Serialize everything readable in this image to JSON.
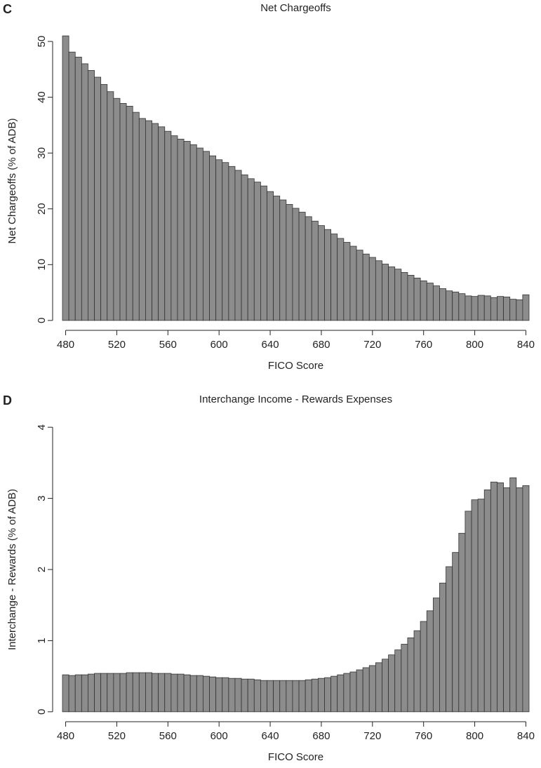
{
  "chart_data": [
    {
      "type": "bar",
      "panel_label": "C",
      "title": "Net Chargeoffs",
      "x_label": "FICO Score",
      "y_label": "Net Chargeoffs (% of ADB)",
      "x": [
        480,
        485,
        490,
        495,
        500,
        505,
        510,
        515,
        520,
        525,
        530,
        535,
        540,
        545,
        550,
        555,
        560,
        565,
        570,
        575,
        580,
        585,
        590,
        595,
        600,
        605,
        610,
        615,
        620,
        625,
        630,
        635,
        640,
        645,
        650,
        655,
        660,
        665,
        670,
        675,
        680,
        685,
        690,
        695,
        700,
        705,
        710,
        715,
        720,
        725,
        730,
        735,
        740,
        745,
        750,
        755,
        760,
        765,
        770,
        775,
        780,
        785,
        790,
        795,
        800,
        805,
        810,
        815,
        820,
        825,
        830,
        835,
        840
      ],
      "values": [
        51.0,
        48.1,
        47.2,
        46.0,
        44.8,
        43.6,
        42.3,
        41.0,
        39.8,
        38.9,
        38.4,
        37.3,
        36.2,
        35.8,
        35.3,
        34.7,
        33.9,
        33.1,
        32.5,
        32.1,
        31.5,
        30.9,
        30.3,
        29.5,
        28.8,
        28.3,
        27.6,
        26.9,
        26.1,
        25.4,
        24.8,
        24.1,
        23.1,
        22.3,
        21.6,
        20.8,
        20.1,
        19.4,
        18.6,
        17.8,
        17.0,
        16.3,
        15.5,
        14.7,
        14.0,
        13.3,
        12.6,
        11.9,
        11.3,
        10.7,
        10.1,
        9.6,
        9.2,
        8.6,
        8.1,
        7.6,
        7.1,
        6.7,
        6.2,
        5.7,
        5.3,
        5.1,
        4.8,
        4.4,
        4.3,
        4.5,
        4.4,
        4.1,
        4.3,
        4.2,
        3.8,
        3.7,
        4.6
      ],
      "bar_width": 5,
      "color": "#8c8c8c",
      "edge_color": "#333333",
      "xlim": [
        477.5,
        842.5
      ],
      "xticks": [
        480,
        520,
        560,
        600,
        640,
        680,
        720,
        760,
        800,
        840
      ],
      "ylim": [
        -1.4,
        52.4
      ],
      "yticks": [
        0,
        10,
        20,
        30,
        40,
        50
      ]
    },
    {
      "type": "bar",
      "panel_label": "D",
      "title": "Interchange Income - Rewards Expenses",
      "x_label": "FICO Score",
      "y_label": "Interchange - Rewards (% of ADB)",
      "x": [
        480,
        485,
        490,
        495,
        500,
        505,
        510,
        515,
        520,
        525,
        530,
        535,
        540,
        545,
        550,
        555,
        560,
        565,
        570,
        575,
        580,
        585,
        590,
        595,
        600,
        605,
        610,
        615,
        620,
        625,
        630,
        635,
        640,
        645,
        650,
        655,
        660,
        665,
        670,
        675,
        680,
        685,
        690,
        695,
        700,
        705,
        710,
        715,
        720,
        725,
        730,
        735,
        740,
        745,
        750,
        755,
        760,
        765,
        770,
        775,
        780,
        785,
        790,
        795,
        800,
        805,
        810,
        815,
        820,
        825,
        830,
        835,
        840
      ],
      "values": [
        0.52,
        0.51,
        0.52,
        0.52,
        0.53,
        0.54,
        0.54,
        0.54,
        0.54,
        0.54,
        0.55,
        0.55,
        0.55,
        0.55,
        0.54,
        0.54,
        0.54,
        0.53,
        0.53,
        0.52,
        0.51,
        0.51,
        0.5,
        0.49,
        0.48,
        0.48,
        0.47,
        0.47,
        0.46,
        0.46,
        0.45,
        0.44,
        0.44,
        0.44,
        0.44,
        0.44,
        0.44,
        0.44,
        0.45,
        0.46,
        0.47,
        0.48,
        0.5,
        0.52,
        0.54,
        0.56,
        0.59,
        0.62,
        0.65,
        0.69,
        0.74,
        0.8,
        0.87,
        0.95,
        1.04,
        1.14,
        1.27,
        1.42,
        1.6,
        1.81,
        2.04,
        2.24,
        2.51,
        2.82,
        2.98,
        2.99,
        3.12,
        3.23,
        3.22,
        3.15,
        3.29,
        3.15,
        3.18
      ],
      "bar_width": 5,
      "color": "#8c8c8c",
      "edge_color": "#333333",
      "xlim": [
        477.5,
        842.5
      ],
      "xticks": [
        480,
        520,
        560,
        600,
        640,
        680,
        720,
        760,
        800,
        840
      ],
      "ylim": [
        -0.11,
        4.11
      ],
      "yticks": [
        0,
        1,
        2,
        3,
        4
      ]
    }
  ]
}
